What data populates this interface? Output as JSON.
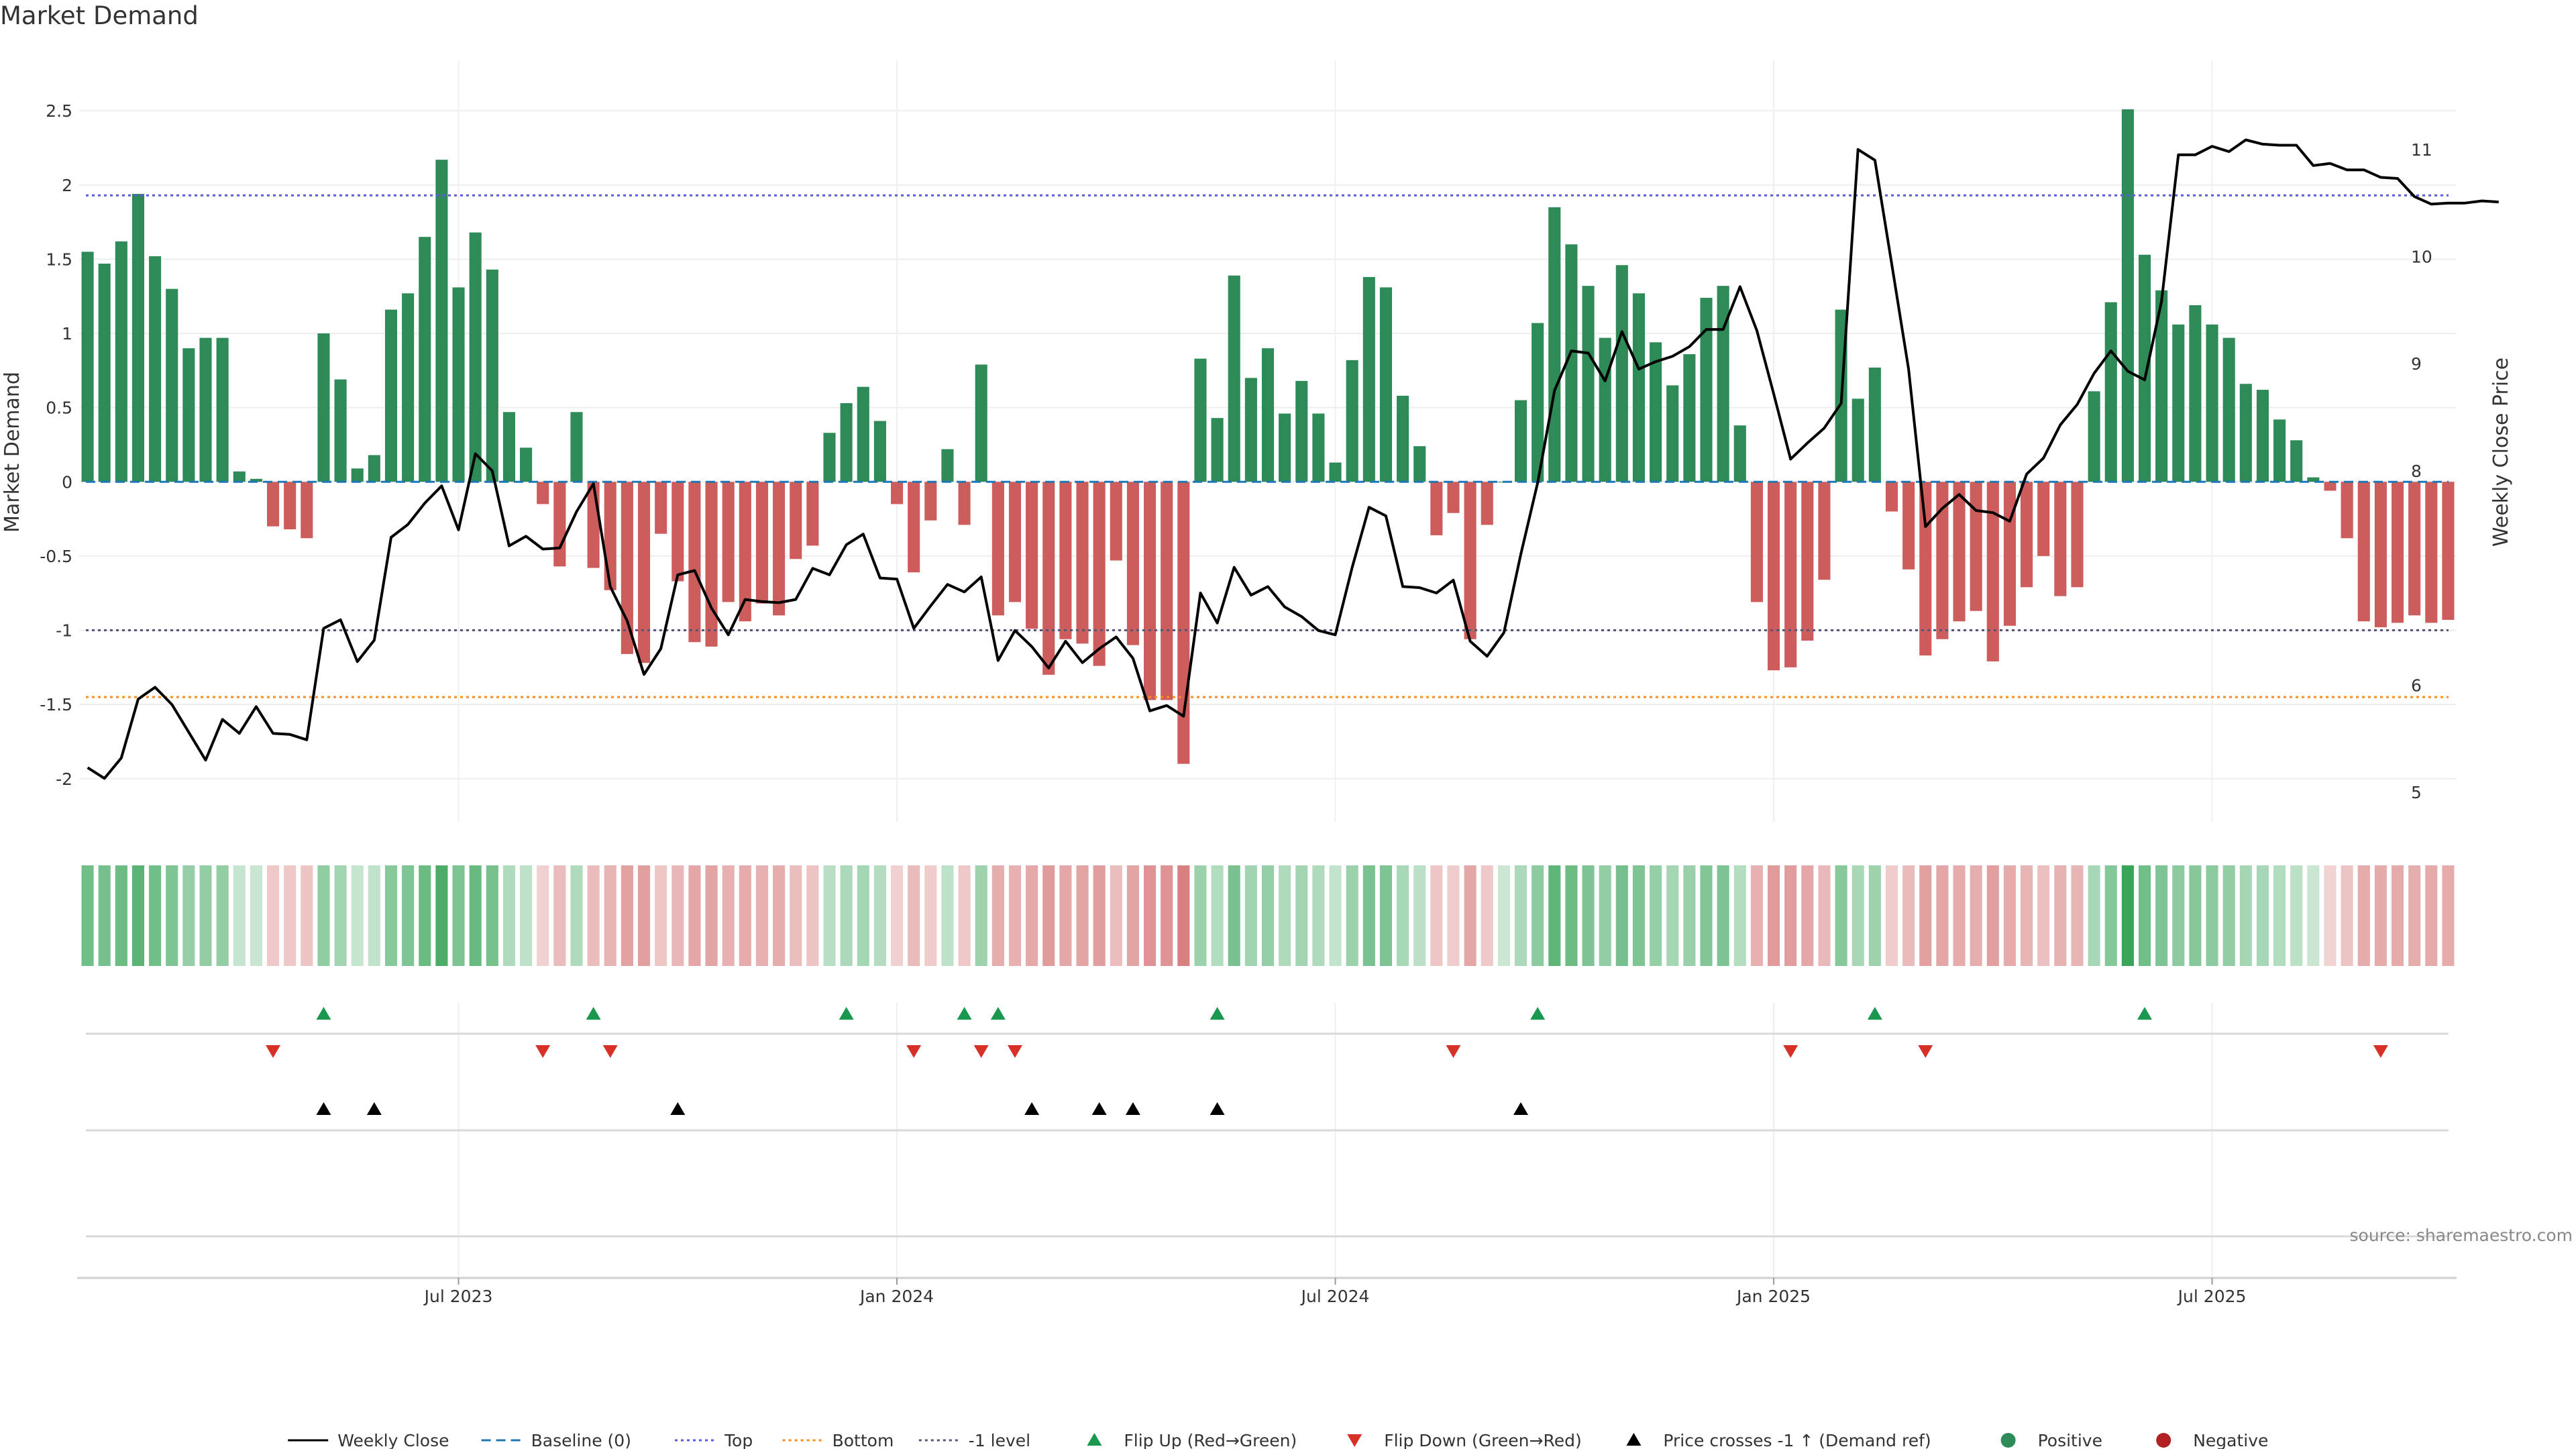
{
  "title": "Market Demand",
  "source": "source: sharemaestro.com",
  "colors": {
    "positive": "#2e8b57",
    "negative": "#cd5c5c",
    "price": "#000000",
    "baseline": "#1f77b4",
    "top": "#5a5adf",
    "bottom": "#ff8c1a",
    "minus1": "#555577",
    "flip_up": "#1a9850",
    "flip_down": "#d73027",
    "cross": "#000000"
  },
  "legend": [
    {
      "label": "Weekly Close",
      "kind": "line",
      "color": "#000000",
      "dash": ""
    },
    {
      "label": "Baseline (0)",
      "kind": "line",
      "color": "#1f77b4",
      "dash": "14,8"
    },
    {
      "label": "Top",
      "kind": "line",
      "color": "#5a5adf",
      "dash": "4,5"
    },
    {
      "label": "Bottom",
      "kind": "line",
      "color": "#ff8c1a",
      "dash": "4,5"
    },
    {
      "label": "-1 level",
      "kind": "line",
      "color": "#555577",
      "dash": "4,5"
    },
    {
      "label": "Flip Up (Red→Green)",
      "kind": "tri-up",
      "color": "#1a9850",
      "dash": ""
    },
    {
      "label": "Flip Down (Green→Red)",
      "kind": "tri-down",
      "color": "#d73027",
      "dash": ""
    },
    {
      "label": "Price crosses -1 ↑ (Demand ref)",
      "kind": "tri-up",
      "color": "#000000",
      "dash": ""
    },
    {
      "label": "Positive",
      "kind": "dot",
      "color": "#2e8b57",
      "dash": ""
    },
    {
      "label": "Negative",
      "kind": "dot",
      "color": "#b22222",
      "dash": ""
    }
  ],
  "chart_data": {
    "type": "bar",
    "ylabel": "Market Demand",
    "y2label": "Weekly Close Price",
    "ylim": [
      -2.2,
      2.6
    ],
    "y2lim": [
      4.85,
      11.5
    ],
    "yticks": [
      "2.5",
      "2",
      "1.5",
      "1",
      "0.5",
      "0",
      "-0.5",
      "-1",
      "-1.5",
      "-2"
    ],
    "y2ticks": [
      "11",
      "10",
      "9",
      "8",
      "7",
      "6",
      "5"
    ],
    "xticks": [
      {
        "label": "Jul 2023",
        "index": 22.5
      },
      {
        "label": "Jan 2024",
        "index": 48.5
      },
      {
        "label": "Jul 2024",
        "index": 74.5
      },
      {
        "label": "Jan 2025",
        "index": 100.5
      },
      {
        "label": "Jul 2025",
        "index": 126.5
      }
    ],
    "reference_lines": {
      "baseline": 0,
      "top": 1.93,
      "bottom": -1.45,
      "minus1": -1.0
    },
    "demand": [
      1.55,
      1.47,
      1.62,
      1.94,
      1.52,
      1.3,
      0.9,
      0.97,
      0.97,
      0.07,
      0.02,
      -0.3,
      -0.32,
      -0.38,
      1.0,
      0.69,
      0.09,
      0.18,
      1.16,
      1.27,
      1.65,
      2.17,
      1.31,
      1.68,
      1.43,
      0.47,
      0.23,
      -0.15,
      -0.57,
      0.47,
      -0.58,
      -0.73,
      -1.16,
      -1.22,
      -0.35,
      -0.67,
      -1.08,
      -1.11,
      -0.81,
      -0.94,
      -0.82,
      -0.9,
      -0.52,
      -0.43,
      0.33,
      0.53,
      0.64,
      0.41,
      -0.15,
      -0.61,
      -0.26,
      0.22,
      -0.29,
      0.79,
      -0.9,
      -0.81,
      -0.99,
      -1.3,
      -1.06,
      -1.09,
      -1.24,
      -0.53,
      -1.1,
      -1.47,
      -1.47,
      -1.9,
      0.83,
      0.43,
      1.39,
      0.7,
      0.9,
      0.46,
      0.68,
      0.46,
      0.13,
      0.82,
      1.38,
      1.31,
      0.58,
      0.24,
      -0.36,
      -0.21,
      -1.06,
      -0.29,
      0.0,
      0.55,
      1.07,
      1.85,
      1.6,
      1.32,
      0.97,
      1.46,
      1.27,
      0.94,
      0.65,
      0.86,
      1.24,
      1.32,
      0.38,
      -0.81,
      -1.27,
      -1.25,
      -1.07,
      -0.66,
      1.16,
      0.56,
      0.77,
      -0.2,
      -0.59,
      -1.17,
      -1.06,
      -0.94,
      -0.87,
      -1.21,
      -0.97,
      -0.71,
      -0.5,
      -0.77,
      -0.71,
      0.61,
      1.21,
      2.51,
      1.53,
      1.29,
      1.06,
      1.19,
      1.06,
      0.97,
      0.66,
      0.62,
      0.42,
      0.28,
      0.03,
      -0.06,
      -0.38,
      -0.94,
      -0.98,
      -0.95,
      -0.9,
      -0.95,
      -0.93
    ],
    "weekly_close": [
      5.23,
      5.13,
      5.32,
      5.87,
      5.98,
      5.82,
      5.56,
      5.3,
      5.68,
      5.55,
      5.8,
      5.55,
      5.54,
      5.49,
      6.53,
      6.61,
      6.22,
      6.42,
      7.38,
      7.5,
      7.7,
      7.86,
      7.45,
      8.16,
      8.0,
      7.3,
      7.39,
      7.27,
      7.28,
      7.62,
      7.88,
      6.92,
      6.6,
      6.1,
      6.34,
      7.03,
      7.07,
      6.72,
      6.47,
      6.8,
      6.78,
      6.77,
      6.8,
      7.09,
      7.03,
      7.31,
      7.41,
      7.0,
      6.99,
      6.53,
      6.74,
      6.94,
      6.87,
      7.01,
      6.23,
      6.51,
      6.36,
      6.16,
      6.41,
      6.21,
      6.34,
      6.45,
      6.25,
      5.76,
      5.81,
      5.71,
      6.86,
      6.58,
      7.1,
      6.84,
      6.92,
      6.73,
      6.64,
      6.51,
      6.47,
      7.1,
      7.66,
      7.58,
      6.92,
      6.91,
      6.86,
      6.98,
      6.41,
      6.27,
      6.49,
      7.22,
      7.89,
      8.75,
      9.12,
      9.1,
      8.84,
      9.3,
      8.95,
      9.02,
      9.07,
      9.16,
      9.32,
      9.32,
      9.72,
      9.31,
      8.72,
      8.11,
      8.26,
      8.4,
      8.63,
      11.0,
      10.9,
      9.93,
      8.95,
      7.48,
      7.65,
      7.78,
      7.63,
      7.61,
      7.53,
      7.97,
      8.12,
      8.43,
      8.62,
      8.91,
      9.12,
      8.93,
      8.85,
      9.58,
      10.95,
      10.95,
      11.03,
      10.98,
      11.09,
      11.05,
      11.04,
      11.04,
      10.85,
      10.87,
      10.81,
      10.81,
      10.74,
      10.73,
      10.56,
      10.49,
      10.5,
      10.5,
      10.52,
      10.51
    ],
    "flip_up_indices": [
      14,
      30,
      45,
      52,
      54,
      67,
      86,
      106,
      122
    ],
    "flip_down_indices": [
      11,
      27,
      31,
      49,
      53,
      55,
      81,
      101,
      109,
      136
    ],
    "price_cross_indices": [
      14,
      17,
      35,
      56,
      60,
      62,
      67,
      85
    ]
  }
}
